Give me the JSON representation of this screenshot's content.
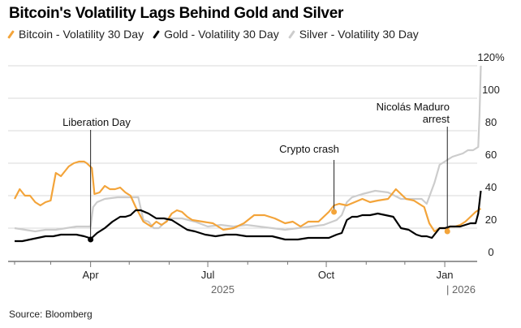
{
  "chart_data": {
    "type": "line",
    "title": "Bitcoin's Volatility Lags Behind Gold and Silver",
    "xlabel": "",
    "ylabel": "",
    "ylim": [
      0,
      120
    ],
    "y_ticks": [
      0,
      20,
      40,
      60,
      80,
      100,
      120
    ],
    "y_tick_labels": [
      "0",
      "20",
      "40",
      "60",
      "80",
      "100",
      "120%"
    ],
    "x_start_date": "2025-02-01",
    "x_end_date": "2026-01-30",
    "x_tick_labels": [
      {
        "label": "Apr",
        "date": "2025-04-01"
      },
      {
        "label": "Jul",
        "date": "2025-07-01"
      },
      {
        "label": "Oct",
        "date": "2025-10-01"
      },
      {
        "label": "Jan",
        "date": "2026-01-01"
      }
    ],
    "x_minor_ticks": [
      "2025-02-01",
      "2025-03-01",
      "2025-05-01",
      "2025-06-01",
      "2025-08-01",
      "2025-09-01",
      "2025-11-01",
      "2025-12-01"
    ],
    "year_labels": [
      {
        "label": "2025",
        "date": "2025-07-01",
        "divider": false
      },
      {
        "label": "2026",
        "date": "2026-01-01",
        "divider": true
      }
    ],
    "grid": true,
    "legend_position": "top-left",
    "series": [
      {
        "name": "Bitcoin - Volatility 30 Day",
        "color": "#f3a43a",
        "x_days": [
          0,
          4,
          8,
          12,
          16,
          20,
          24,
          28,
          32,
          36,
          38,
          42,
          46,
          50,
          54,
          56,
          60,
          62,
          66,
          70,
          74,
          78,
          82,
          86,
          90,
          94,
          100,
          106,
          110,
          114,
          118,
          122,
          126,
          130,
          134,
          138,
          146,
          154,
          162,
          170,
          178,
          186,
          194,
          202,
          210,
          216,
          222,
          228,
          236,
          244,
          248,
          252,
          258,
          264,
          270,
          276,
          282,
          290,
          296,
          304,
          310,
          314,
          318,
          322,
          326,
          330,
          334,
          336,
          338,
          342,
          346,
          350,
          354,
          358,
          362
        ],
        "values": [
          38,
          44,
          40,
          40,
          36,
          34,
          36,
          37,
          54,
          52,
          54,
          58,
          60,
          61,
          61,
          60,
          57,
          41,
          42,
          46,
          44,
          44,
          45,
          42,
          40,
          33,
          24,
          21,
          24,
          22,
          24,
          29,
          31,
          30,
          27,
          25,
          24,
          23,
          19,
          20,
          23,
          28,
          28,
          26,
          23,
          24,
          21,
          24,
          24,
          30,
          34,
          35,
          34,
          36,
          38,
          36,
          37,
          38,
          44,
          38,
          37,
          35,
          33,
          23,
          18,
          20,
          20,
          19,
          21,
          21,
          22,
          24,
          27,
          30,
          32
        ],
        "markers": [
          {
            "x_day": 59,
            "value": 42,
            "annotation": "Liberation Day"
          },
          {
            "x_day": 248,
            "value": 30,
            "annotation": "Crypto crash"
          },
          {
            "x_day": 336,
            "value": 18,
            "annotation": "Nicolás Maduro arrest"
          }
        ]
      },
      {
        "name": "Gold - Volatility 30 Day",
        "color": "#000000",
        "x_days": [
          0,
          6,
          12,
          18,
          24,
          30,
          36,
          42,
          48,
          54,
          58,
          60,
          64,
          70,
          76,
          82,
          86,
          90,
          94,
          98,
          104,
          110,
          116,
          122,
          128,
          134,
          140,
          148,
          156,
          164,
          172,
          180,
          190,
          200,
          210,
          220,
          228,
          236,
          244,
          250,
          254,
          258,
          262,
          266,
          270,
          276,
          282,
          288,
          294,
          300,
          306,
          312,
          316,
          320,
          324,
          330,
          334,
          338,
          342,
          346,
          350,
          354,
          358,
          360,
          362
        ],
        "values": [
          12,
          12,
          13,
          14,
          15,
          15,
          16,
          16,
          16,
          15,
          14,
          14,
          17,
          20,
          24,
          27,
          27,
          28,
          31,
          31,
          29,
          26,
          26,
          25,
          22,
          19,
          18,
          16,
          15,
          16,
          16,
          15,
          15,
          15,
          13,
          13,
          14,
          14,
          14,
          16,
          17,
          25,
          27,
          27,
          28,
          28,
          29,
          28,
          27,
          20,
          19,
          16,
          15,
          15,
          14,
          20,
          20,
          21,
          21,
          21,
          22,
          23,
          23,
          29,
          43
        ],
        "markers": [
          {
            "x_day": 59,
            "value": 13
          }
        ]
      },
      {
        "name": "Silver - Volatility 30 Day",
        "color": "#cccccc",
        "x_days": [
          0,
          8,
          16,
          24,
          32,
          40,
          48,
          56,
          59,
          61,
          64,
          70,
          80,
          90,
          96,
          100,
          104,
          108,
          112,
          120,
          130,
          140,
          150,
          160,
          170,
          180,
          190,
          200,
          210,
          220,
          230,
          240,
          250,
          254,
          258,
          262,
          270,
          280,
          290,
          300,
          310,
          316,
          320,
          326,
          330,
          332,
          336,
          340,
          344,
          348,
          352,
          356,
          360,
          361,
          362
        ],
        "values": [
          20,
          19,
          18,
          19,
          19,
          20,
          21,
          21,
          21,
          33,
          36,
          38,
          39,
          39,
          39,
          25,
          24,
          20,
          20,
          26,
          26,
          24,
          21,
          22,
          21,
          22,
          21,
          20,
          19,
          20,
          21,
          22,
          25,
          28,
          36,
          39,
          41,
          43,
          42,
          38,
          38,
          38,
          35,
          48,
          59,
          60,
          62,
          64,
          65,
          66,
          68,
          68,
          70,
          90,
          120
        ]
      }
    ],
    "annotations": [
      "Liberation Day",
      "Crypto crash",
      "Nicolás Maduro arrest"
    ]
  },
  "source": "Source: Bloomberg"
}
